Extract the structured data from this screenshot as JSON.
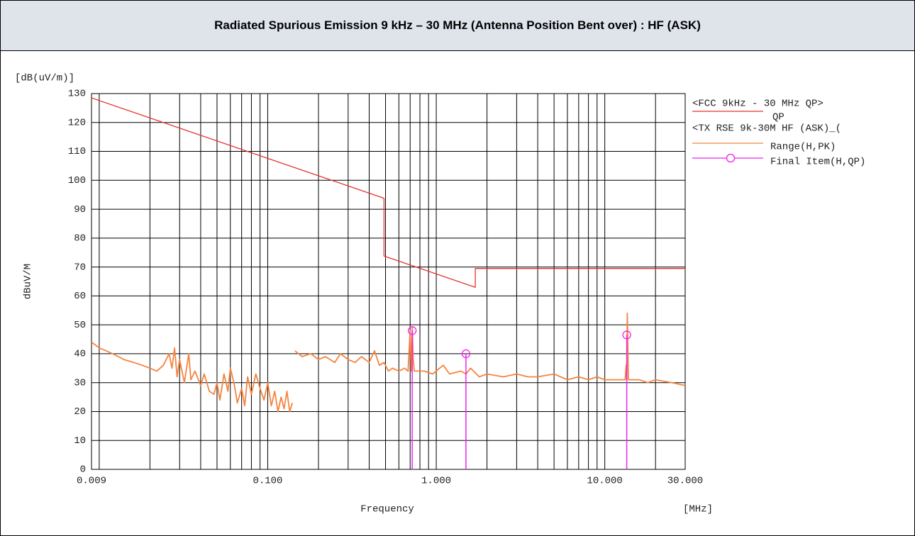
{
  "header": {
    "title": "Radiated Spurious Emission 9 kHz – 30 MHz (Antenna Position Bent over) : HF (ASK)"
  },
  "chart_data": {
    "type": "line",
    "xscale": "log",
    "y_unit": "[dB(uV/m)]",
    "ylabel": "dBuV/M",
    "xlabel": "Frequency",
    "x_unit": "[MHz]",
    "xlim": [
      0.009,
      30
    ],
    "ylim": [
      0,
      130
    ],
    "xticks": [
      {
        "value": 0.009,
        "label": "0.009"
      },
      {
        "value": 0.1,
        "label": "0.100"
      },
      {
        "value": 1,
        "label": "1.000"
      },
      {
        "value": 10,
        "label": "10.000"
      },
      {
        "value": 30,
        "label": "30.000"
      }
    ],
    "xgrid": [
      0.01,
      0.02,
      0.03,
      0.04,
      0.05,
      0.06,
      0.07,
      0.08,
      0.09,
      0.2,
      0.3,
      0.4,
      0.5,
      0.6,
      0.7,
      0.8,
      0.9,
      2,
      3,
      4,
      5,
      6,
      7,
      8,
      9,
      20
    ],
    "yticks": [
      0,
      10,
      20,
      30,
      40,
      50,
      60,
      70,
      80,
      90,
      100,
      110,
      120,
      130
    ],
    "grid": true,
    "legend_headings": [
      "<FCC 9kHz - 30 MHz QP>",
      "<TX RSE 9k-30M HF (ASK)_("
    ],
    "series": [
      {
        "name": "QP",
        "color": "#e8312f",
        "x": [
          0.009,
          0.49,
          0.49,
          1.705,
          1.705,
          30
        ],
        "values": [
          128.5,
          93.8,
          73.8,
          63,
          69.5,
          69.5
        ]
      },
      {
        "name": "Range(H,PK)",
        "color": "#f5843f",
        "x": [
          0.009,
          0.0095,
          0.01,
          0.011,
          0.012,
          0.013,
          0.014,
          0.016,
          0.018,
          0.02,
          0.022,
          0.024,
          0.026,
          0.027,
          0.028,
          0.029,
          0.03,
          0.032,
          0.034,
          0.035,
          0.037,
          0.04,
          0.042,
          0.045,
          0.048,
          0.05,
          0.052,
          0.055,
          0.058,
          0.06,
          0.063,
          0.066,
          0.07,
          0.073,
          0.076,
          0.08,
          0.085,
          0.09,
          0.095,
          0.1,
          0.105,
          0.11,
          0.115,
          0.12,
          0.125,
          0.13,
          0.135,
          0.14,
          0.142,
          0.145,
          0.16,
          0.18,
          0.2,
          0.22,
          0.25,
          0.27,
          0.3,
          0.33,
          0.36,
          0.4,
          0.43,
          0.46,
          0.49,
          0.52,
          0.55,
          0.6,
          0.65,
          0.68,
          0.7,
          0.71,
          0.72,
          0.73,
          0.74,
          0.77,
          0.85,
          0.95,
          1.1,
          1.2,
          1.4,
          1.5,
          1.6,
          1.8,
          2,
          2.5,
          3,
          3.5,
          4,
          5,
          6,
          7,
          8,
          9,
          10,
          12,
          13.2,
          13.4,
          13.5,
          13.6,
          13.8,
          16,
          18,
          20,
          25,
          30
        ],
        "values": [
          44,
          43,
          42,
          41,
          40,
          39,
          38,
          37,
          36,
          35,
          34,
          36,
          40,
          35,
          42,
          32,
          38,
          30,
          40,
          31,
          34,
          29,
          33,
          27,
          26,
          30,
          24,
          33,
          27,
          35,
          30,
          23,
          28,
          22,
          32,
          26,
          33,
          28,
          24,
          30,
          22,
          27,
          20,
          25,
          21,
          27,
          20,
          23,
          null,
          41,
          39,
          40,
          38,
          39,
          37,
          40,
          38,
          37,
          39,
          37,
          41,
          36,
          37,
          34,
          35,
          34,
          35,
          34,
          48,
          34,
          49,
          38,
          34,
          34,
          34,
          33,
          36,
          33,
          34,
          33,
          35,
          32,
          33,
          32,
          33,
          32,
          32,
          33,
          31,
          32,
          31,
          32,
          31,
          31,
          31,
          36,
          31,
          54,
          31,
          31,
          30,
          31,
          30,
          29
        ]
      },
      {
        "name": "Final Item(H,QP)",
        "color": "#ee22ee",
        "marker": "circle",
        "stems": true,
        "x": [
          0.72,
          1.5,
          13.5
        ],
        "values": [
          48,
          40,
          46.5
        ]
      }
    ]
  }
}
